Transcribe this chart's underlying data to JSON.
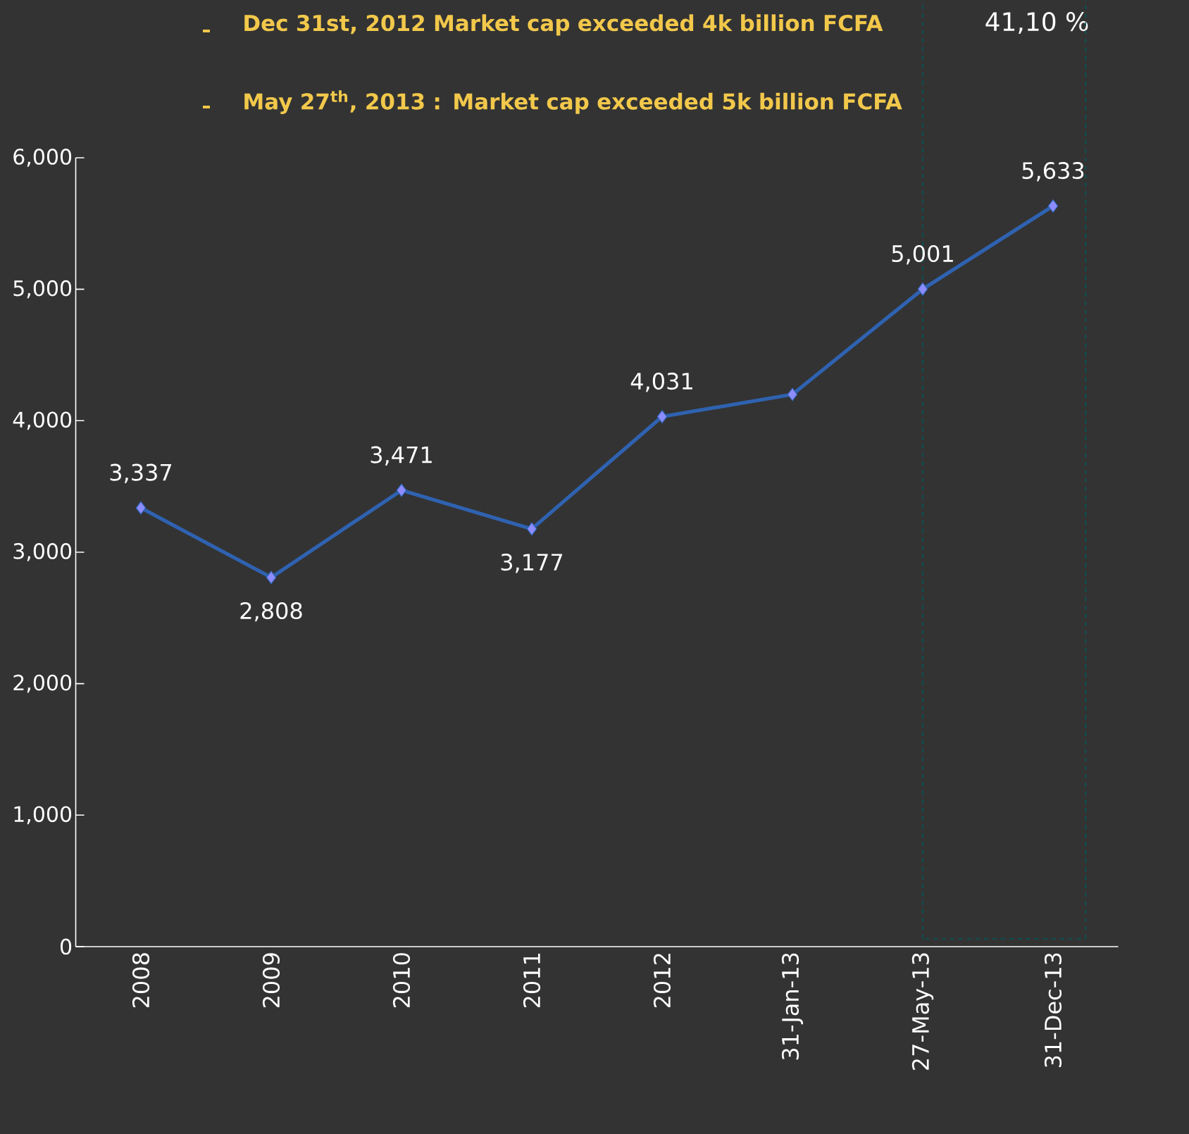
{
  "chart_data": {
    "type": "line",
    "categories": [
      "2008",
      "2009",
      "2010",
      "2011",
      "2012",
      "31-Jan-13",
      "27-May-13",
      "31-Dec-13"
    ],
    "series": [
      {
        "color": "#2f62b0",
        "values": [
          3337,
          2808,
          3471,
          3177,
          4031,
          4200,
          5001,
          5633
        ],
        "value_labels": [
          "3,337",
          "2,808",
          "3,471",
          "3,177",
          "4,031",
          null,
          "5,001",
          "5,633"
        ]
      }
    ],
    "marker": "diamond",
    "line_style": "solid",
    "ylim": [
      0,
      6000
    ],
    "yticks": [
      {
        "value": 0,
        "label": "0"
      },
      {
        "value": 1000,
        "label": "1,000"
      },
      {
        "value": 2000,
        "label": "2,000"
      },
      {
        "value": 3000,
        "label": "3,000"
      },
      {
        "value": 4000,
        "label": "4,000"
      },
      {
        "value": 5000,
        "label": "5,000"
      },
      {
        "value": 6000,
        "label": "6,000"
      }
    ],
    "annotations": [
      "Dec 31st, 2012 Market cap exceeded  4k billion FCFA",
      "May 27$^{th}$, 2013 : Market cap exceeded 5k billion FCFA",
      "41,10 %"
    ]
  }
}
